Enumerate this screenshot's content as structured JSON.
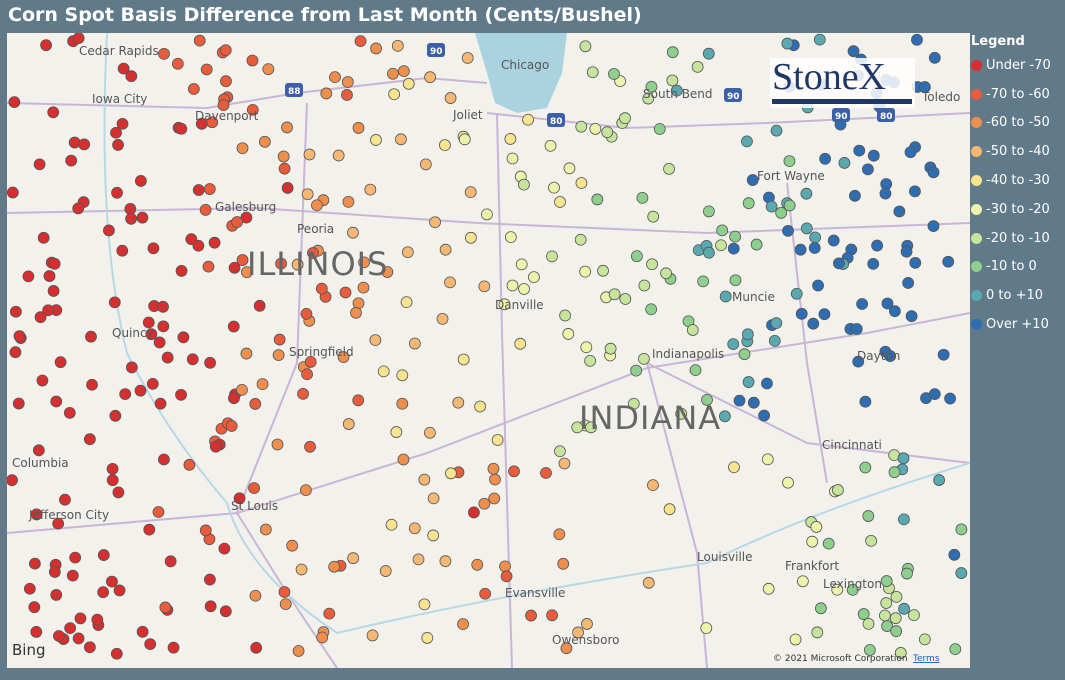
{
  "header": {
    "title": "Corn Spot Basis Difference from Last Month (Cents/Bushel)"
  },
  "legend": {
    "title": "Legend",
    "items": [
      {
        "label": "Under -70",
        "color": "#d62f2f"
      },
      {
        "label": "-70 to -60",
        "color": "#e85c3c"
      },
      {
        "label": "-60 to -50",
        "color": "#ef8f4e"
      },
      {
        "label": "-50 to -40",
        "color": "#f5b874"
      },
      {
        "label": "-40 to -30",
        "color": "#f8e38e"
      },
      {
        "label": "-30 to -20",
        "color": "#eef3ab"
      },
      {
        "label": "-20 to -10",
        "color": "#c6e49b"
      },
      {
        "label": "-10 to 0",
        "color": "#8fcf8e"
      },
      {
        "label": "0 to +10",
        "color": "#5aa9b0"
      },
      {
        "label": "Over +10",
        "color": "#2f6db3"
      }
    ]
  },
  "map": {
    "cities": [
      "Cedar Rapids",
      "Iowa City",
      "Davenport",
      "Galesburg",
      "Peoria",
      "Springfield",
      "Quincy",
      "Columbia",
      "Jefferson City",
      "St Louis",
      "Chicago",
      "Joliet",
      "South Bend",
      "Toledo",
      "Fort Wayne",
      "Muncie",
      "Indianapolis",
      "Dayton",
      "Cincinnati",
      "Danville",
      "Evansville",
      "Owensboro",
      "Louisville",
      "Frankfort",
      "Lexington"
    ],
    "states": [
      "ILLINOIS",
      "INDIANA"
    ],
    "highway_shields": [
      "90",
      "88",
      "80",
      "90",
      "90",
      "80"
    ]
  },
  "logo": "StoneX",
  "attribution": {
    "provider": "Bing",
    "copyright": "© 2021 Microsoft Corporation",
    "terms": "Terms"
  }
}
